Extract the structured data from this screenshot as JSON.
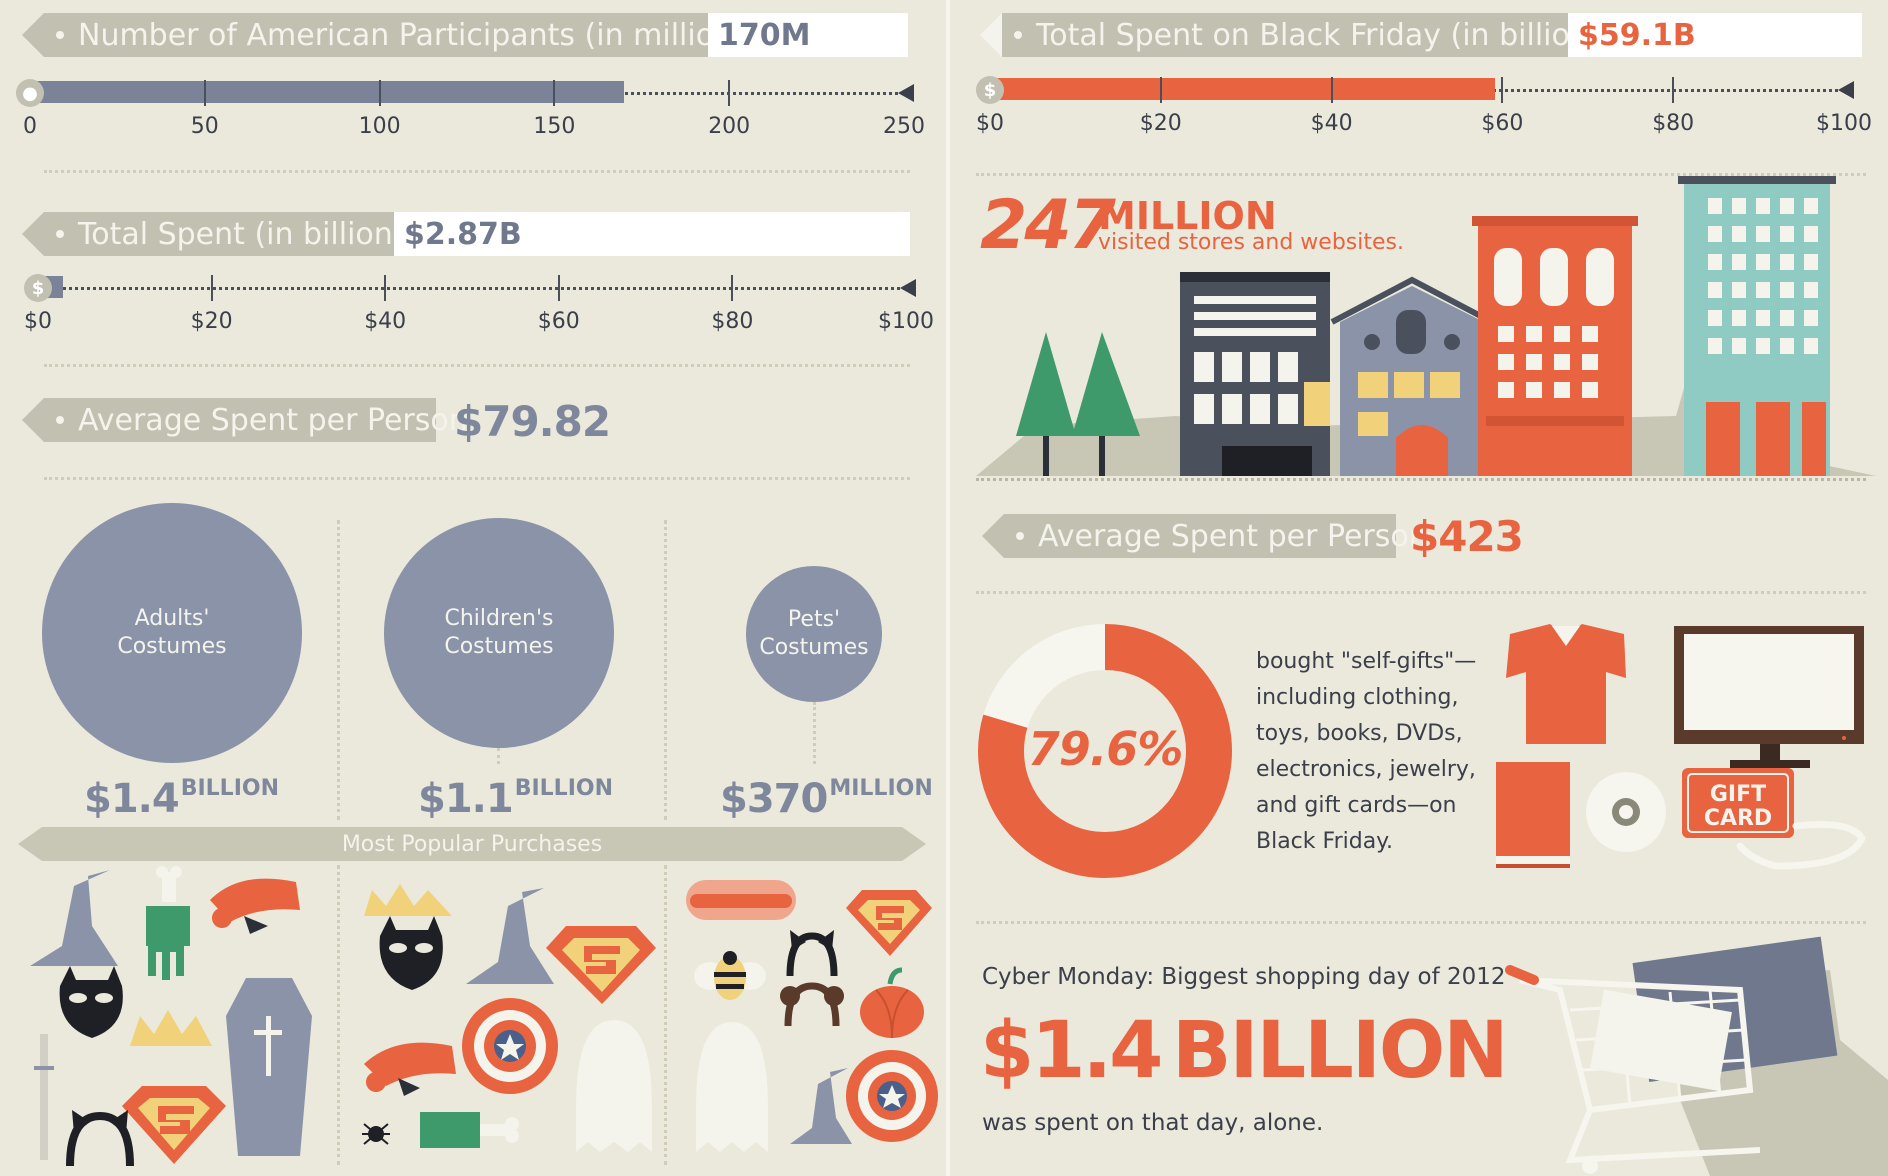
{
  "halloween": {
    "participants": {
      "label": "Number of American Participants (in millions)",
      "value": "170M",
      "amount": 170,
      "ticks": [
        "0",
        "50",
        "100",
        "150",
        "200",
        "250"
      ]
    },
    "total_spent": {
      "label": "Total Spent (in billions)",
      "value": "$2.87B",
      "amount": 2.87,
      "ticks": [
        "$0",
        "$20",
        "$40",
        "$60",
        "$80",
        "$100"
      ]
    },
    "avg_spent": {
      "label": "Average Spent per Person",
      "value": "$79.82"
    },
    "costumes": [
      {
        "label_line1": "Adults'",
        "label_line2": "Costumes",
        "amount": "$1.4",
        "unit": "BILLION"
      },
      {
        "label_line1": "Children's",
        "label_line2": "Costumes",
        "amount": "$1.1",
        "unit": "BILLION"
      },
      {
        "label_line1": "Pets'",
        "label_line2": "Costumes",
        "amount": "$370",
        "unit": "MILLION"
      }
    ],
    "popular_label": "Most Popular Purchases"
  },
  "black_friday": {
    "total_spent": {
      "label": "Total Spent on Black Friday (in billions)",
      "value": "$59.1B",
      "amount": 59.1,
      "ticks": [
        "$0",
        "$20",
        "$40",
        "$60",
        "$80",
        "$100"
      ]
    },
    "visitors_number": "247",
    "visitors_unit": "MILLION",
    "visitors_text": "visited stores and websites.",
    "avg_spent": {
      "label": "Average Spent per Person",
      "value": "$423"
    },
    "self_gifts_percent": "79.6%",
    "self_gifts_fraction": 0.796,
    "self_gifts_lines": [
      "bought \"self-gifts\"—",
      "including clothing,",
      "toys, books, DVDs,",
      "electronics, jewelry,",
      "and gift cards—on",
      "Black Friday."
    ],
    "gift_card_line1": "GIFT",
    "gift_card_line2": "CARD",
    "cyber_monday_heading": "Cyber Monday: Biggest shopping day of 2012",
    "cyber_monday_amount": "$1.4",
    "cyber_monday_unit": "BILLION",
    "cyber_monday_footer": "was spent on that day, alone."
  },
  "colors": {
    "slate": "#6f788d",
    "orange": "#e8633f",
    "bg": "#ebe9dc"
  }
}
